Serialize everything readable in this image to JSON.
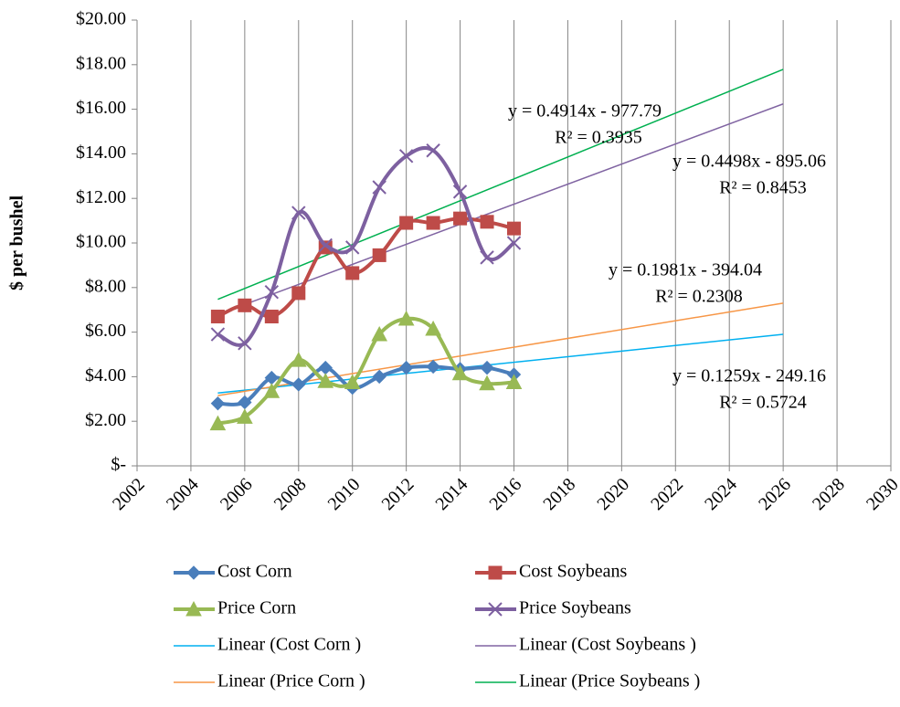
{
  "chart_data": {
    "type": "line",
    "y_label": "$ per bushel",
    "x": [
      2005,
      2006,
      2007,
      2008,
      2009,
      2010,
      2011,
      2012,
      2013,
      2014,
      2015,
      2016
    ],
    "series": [
      {
        "name": "Cost Corn",
        "color": "#4a7ebb",
        "marker": "diamond",
        "values": [
          2.8,
          2.85,
          3.95,
          3.65,
          4.4,
          3.5,
          4.0,
          4.4,
          4.45,
          4.35,
          4.4,
          4.1
        ]
      },
      {
        "name": "Cost Soybeans",
        "color": "#be4b48",
        "marker": "square",
        "values": [
          6.7,
          7.2,
          6.7,
          7.75,
          9.8,
          8.65,
          9.45,
          10.9,
          10.9,
          11.1,
          10.95,
          10.65
        ]
      },
      {
        "name": "Price Corn",
        "color": "#98b954",
        "marker": "triangle",
        "values": [
          1.9,
          2.2,
          3.35,
          4.75,
          3.8,
          3.75,
          5.9,
          6.6,
          6.15,
          4.15,
          3.7,
          3.75
        ]
      },
      {
        "name": "Price Soybeans",
        "color": "#7d60a0",
        "marker": "x",
        "values": [
          5.9,
          5.5,
          7.8,
          11.35,
          9.9,
          9.8,
          12.5,
          13.9,
          14.15,
          12.3,
          9.35,
          10.0
        ]
      }
    ],
    "trendlines": [
      {
        "name": "Linear (Cost Corn )",
        "color": "#00b0f0",
        "x": [
          2005,
          2026
        ],
        "values": [
          3.27,
          5.9
        ],
        "equation": "y = 0.1259x - 249.16",
        "r2": "R² = 0.5724"
      },
      {
        "name": "Linear (Cost Soybeans )",
        "color": "#8064a2",
        "x": [
          2005,
          2026
        ],
        "values": [
          6.79,
          16.24
        ],
        "equation": "y = 0.4498x - 895.06",
        "r2": "R² = 0.8453"
      },
      {
        "name": "Linear (Price Corn )",
        "color": "#f79646",
        "x": [
          2005,
          2026
        ],
        "values": [
          3.15,
          7.3
        ],
        "equation": "y = 0.1981x - 394.04",
        "r2": "R² = 0.2308"
      },
      {
        "name": "Linear (Price Soybeans )",
        "color": "#00b050",
        "x": [
          2005,
          2026
        ],
        "values": [
          7.47,
          17.79
        ],
        "equation": "y = 0.4914x - 977.79",
        "r2": "R² = 0.3935"
      }
    ],
    "xlim": [
      2002,
      2030
    ],
    "xticks": [
      2002,
      2004,
      2006,
      2008,
      2010,
      2012,
      2014,
      2016,
      2018,
      2020,
      2022,
      2024,
      2026,
      2028,
      2030
    ],
    "ylim": [
      0,
      20
    ],
    "yticks": [
      {
        "value": 0,
        "label": "$-"
      },
      {
        "value": 2,
        "label": "$2.00"
      },
      {
        "value": 4,
        "label": "$4.00"
      },
      {
        "value": 6,
        "label": "$6.00"
      },
      {
        "value": 8,
        "label": "$8.00"
      },
      {
        "value": 10,
        "label": "$10.00"
      },
      {
        "value": 12,
        "label": "$12.00"
      },
      {
        "value": 14,
        "label": "$14.00"
      },
      {
        "value": 16,
        "label": "$16.00"
      },
      {
        "value": 18,
        "label": "$18.00"
      },
      {
        "value": 20,
        "label": "$20.00"
      }
    ],
    "grid": "x",
    "legend": "bottom"
  }
}
